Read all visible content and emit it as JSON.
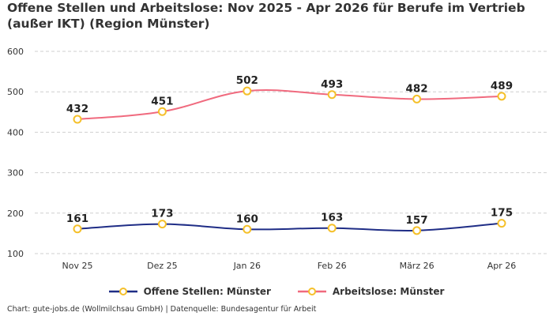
{
  "title": "Offene Stellen und Arbeitslose: Nov 2025 - Apr 2026 für Berufe im Vertrieb (außer IKT) (Region Münster)",
  "footer": "Chart: gute-jobs.de (Wollmilchsau GmbH) | Datenquelle: Bundesagentur für Arbeit",
  "colors": {
    "offene_stellen": "#1f2d86",
    "arbeitslose": "#f06a7e",
    "marker": "#f5c02a",
    "grid": "#cfcfcf"
  },
  "chart_data": {
    "type": "line",
    "title": "Offene Stellen und Arbeitslose: Nov 2025 - Apr 2026 für Berufe im Vertrieb (außer IKT) (Region Münster)",
    "categories": [
      "Nov 25",
      "Dez 25",
      "Jan 26",
      "Feb 26",
      "März 26",
      "Apr 26"
    ],
    "series": [
      {
        "name": "Offene Stellen: Münster",
        "values": [
          161,
          173,
          160,
          163,
          157,
          175
        ]
      },
      {
        "name": "Arbeitslose: Münster",
        "values": [
          432,
          451,
          502,
          493,
          482,
          489
        ]
      }
    ],
    "yticks": [
      "100",
      "200",
      "300",
      "400",
      "500",
      "600"
    ],
    "ylim": [
      100,
      600
    ],
    "xlabel": "",
    "ylabel": "",
    "grid": true,
    "legend": "bottom"
  }
}
